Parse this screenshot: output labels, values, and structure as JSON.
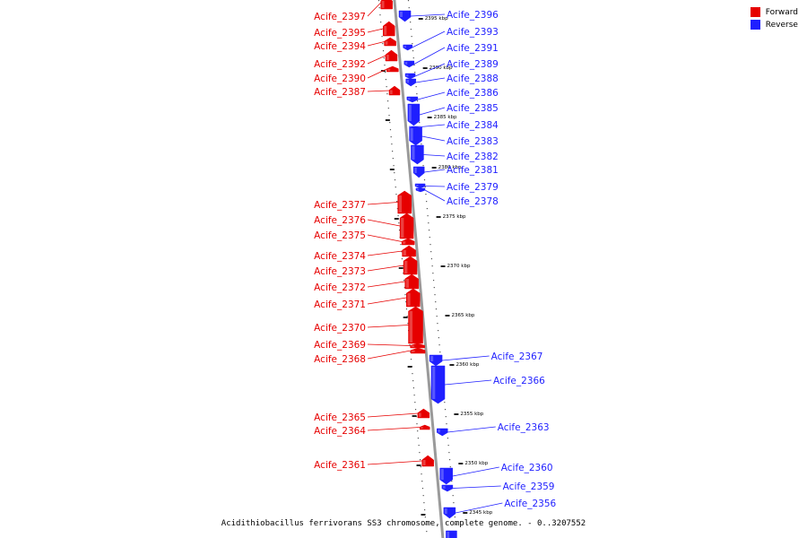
{
  "colors": {
    "forward": "#e60000",
    "reverse": "#1f1fff",
    "backbone": "#9a9a9a"
  },
  "legend": [
    {
      "label": "Forward",
      "color": "#e60000"
    },
    {
      "label": "Reverse",
      "color": "#1f1fff"
    }
  ],
  "caption": "Acidithiobacillus ferrivorans SS3 chromosome, complete genome. - 0..3207552",
  "scale_ticks": [
    "2395 kbp",
    "2390 kbp",
    "2385 kbp",
    "2380 kbp",
    "2375 kbp",
    "2370 kbp",
    "2365 kbp",
    "2360 kbp",
    "2355 kbp",
    "2350 kbp",
    "2345 kbp"
  ],
  "forward_genes": [
    "Acife_2397",
    "Acife_2395",
    "Acife_2394",
    "Acife_2392",
    "Acife_2390",
    "Acife_2387",
    "Acife_2377",
    "Acife_2376",
    "Acife_2375",
    "Acife_2374",
    "Acife_2373",
    "Acife_2372",
    "Acife_2371",
    "Acife_2370",
    "Acife_2369",
    "Acife_2368",
    "Acife_2365",
    "Acife_2364",
    "Acife_2361"
  ],
  "reverse_genes": [
    "Acife_2396",
    "Acife_2393",
    "Acife_2391",
    "Acife_2389",
    "Acife_2388",
    "Acife_2386",
    "Acife_2385",
    "Acife_2384",
    "Acife_2383",
    "Acife_2382",
    "Acife_2381",
    "Acife_2379",
    "Acife_2378",
    "Acife_2367",
    "Acife_2366",
    "Acife_2363",
    "Acife_2360",
    "Acife_2359",
    "Acife_2356"
  ]
}
